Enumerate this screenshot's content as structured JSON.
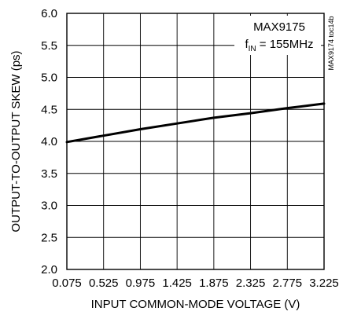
{
  "chart_data": {
    "type": "line",
    "xlabel": "INPUT COMMON-MODE VOLTAGE (V)",
    "ylabel": "OUTPUT-TO-OUTPUT SKEW (ps)",
    "xlim": [
      0.075,
      3.225
    ],
    "ylim": [
      2.0,
      6.0
    ],
    "x_ticks": [
      "0.075",
      "0.525",
      "0.975",
      "1.425",
      "1.875",
      "2.325",
      "2.775",
      "3.225"
    ],
    "y_ticks": [
      "2.0",
      "2.5",
      "3.0",
      "3.5",
      "4.0",
      "4.5",
      "5.0",
      "5.5",
      "6.0"
    ],
    "grid": true,
    "series": [
      {
        "x": [
          0.075,
          0.525,
          0.975,
          1.425,
          1.875,
          2.325,
          2.775,
          3.225
        ],
        "y": [
          3.99,
          4.09,
          4.19,
          4.28,
          4.37,
          4.44,
          4.52,
          4.59
        ]
      }
    ],
    "annotations": {
      "device": "MAX9175",
      "condition_prefix": "f",
      "condition_subscript": "IN",
      "condition_suffix": " = 155MHz",
      "side_code": "MAX9174 toc14b"
    }
  }
}
